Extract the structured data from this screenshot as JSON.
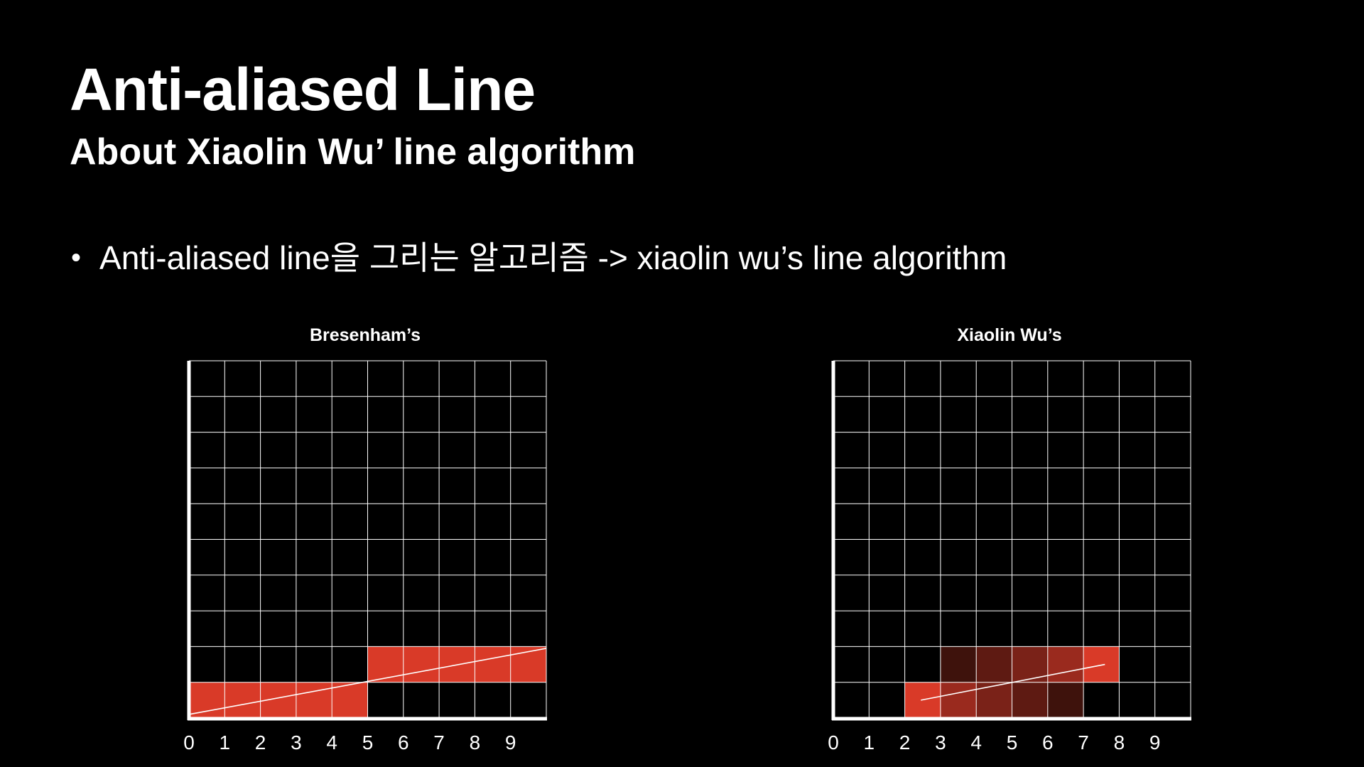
{
  "slide": {
    "title": "Anti-aliased Line",
    "subtitle": "About Xiaolin Wu’ line algorithm",
    "bullet": "Anti-aliased line을 그리는 알고리즘 -> xiaolin wu’s line algorithm"
  },
  "panels": [
    {
      "title": "Bresenham’s",
      "x_labels": [
        "0",
        "1",
        "2",
        "3",
        "4",
        "5",
        "6",
        "7",
        "8",
        "9"
      ],
      "grid": {
        "cols": 10,
        "rows": 10
      },
      "cells": [
        {
          "x": 0,
          "y": 0,
          "color": "#d93a28"
        },
        {
          "x": 1,
          "y": 0,
          "color": "#d93a28"
        },
        {
          "x": 2,
          "y": 0,
          "color": "#d93a28"
        },
        {
          "x": 3,
          "y": 0,
          "color": "#d93a28"
        },
        {
          "x": 4,
          "y": 0,
          "color": "#d93a28"
        },
        {
          "x": 5,
          "y": 1,
          "color": "#d93a28"
        },
        {
          "x": 6,
          "y": 1,
          "color": "#d93a28"
        },
        {
          "x": 7,
          "y": 1,
          "color": "#d93a28"
        },
        {
          "x": 8,
          "y": 1,
          "color": "#d93a28"
        },
        {
          "x": 9,
          "y": 1,
          "color": "#d93a28"
        }
      ],
      "line": {
        "x1": 0,
        "y1": 0.1,
        "x2": 10,
        "y2": 1.95
      }
    },
    {
      "title": "Xiaolin Wu’s",
      "x_labels": [
        "0",
        "1",
        "2",
        "3",
        "4",
        "5",
        "6",
        "7",
        "8",
        "9"
      ],
      "grid": {
        "cols": 10,
        "rows": 10
      },
      "cells": [
        {
          "x": 2,
          "y": 0,
          "color": "#d93a28"
        },
        {
          "x": 3,
          "y": 0,
          "color": "#9a2a1e"
        },
        {
          "x": 4,
          "y": 0,
          "color": "#7a2218"
        },
        {
          "x": 5,
          "y": 0,
          "color": "#5e1a12"
        },
        {
          "x": 6,
          "y": 0,
          "color": "#3e120c"
        },
        {
          "x": 3,
          "y": 1,
          "color": "#3e120c"
        },
        {
          "x": 4,
          "y": 1,
          "color": "#5e1a12"
        },
        {
          "x": 5,
          "y": 1,
          "color": "#7a2218"
        },
        {
          "x": 6,
          "y": 1,
          "color": "#9a2a1e"
        },
        {
          "x": 7,
          "y": 1,
          "color": "#d93a28"
        }
      ],
      "line": {
        "x1": 2.45,
        "y1": 0.5,
        "x2": 7.6,
        "y2": 1.5
      }
    }
  ],
  "colors": {
    "background": "#000000",
    "text": "#ffffff",
    "grid": "#ffffff",
    "accent_red": "#d93a28"
  }
}
